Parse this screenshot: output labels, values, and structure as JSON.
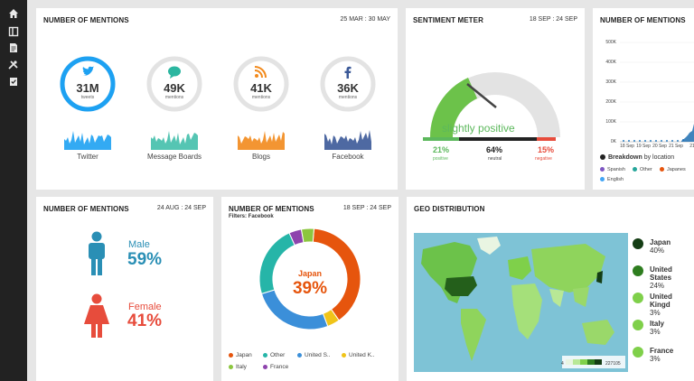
{
  "sidebar": {
    "icons": [
      "home-icon",
      "layout-icon",
      "document-icon",
      "tools-icon",
      "clipboard-check-icon"
    ]
  },
  "mentions_card": {
    "title": "NUMBER OF MENTIONS",
    "date": "25 MAR : 30 MAY",
    "sources": [
      {
        "value": "31M",
        "sub": "tweets",
        "label": "Twitter",
        "color": "#1da1f2",
        "icon": "twitter-icon",
        "ring": 0.85
      },
      {
        "value": "49K",
        "sub": "mentions",
        "label": "Message Boards",
        "color": "#2bb6a0",
        "icon": "chat-bubble-icon",
        "ring": 0
      },
      {
        "value": "41K",
        "sub": "mentions",
        "label": "Blogs",
        "color": "#f28a1c",
        "icon": "rss-icon",
        "ring": 0
      },
      {
        "value": "36K",
        "sub": "mentions",
        "label": "Facebook",
        "color": "#3b5998",
        "icon": "facebook-icon",
        "ring": 0
      }
    ]
  },
  "sentiment": {
    "title": "SENTIMENT METER",
    "date": "18 SEP : 24 SEP",
    "verdict": "slightly positive",
    "positive": {
      "value": "21%",
      "label": "positive",
      "color": "#5cb85c"
    },
    "neutral": {
      "value": "64%",
      "label": "neutral",
      "color": "#222"
    },
    "negative": {
      "value": "15%",
      "label": "negative",
      "color": "#e74c3c"
    }
  },
  "mentions_line": {
    "title": "NUMBER OF MENTIONS",
    "yticks": [
      "500K",
      "400K",
      "300K",
      "200K",
      "100K",
      "0K"
    ],
    "xticks": [
      "18 Sep",
      "19 Sep",
      "20 Sep",
      "21 Sep",
      "21"
    ],
    "breakdown_bold": "Breakdown",
    "breakdown_rest": "by location",
    "legend": [
      {
        "name": "Spanish",
        "color": "#7e57c2"
      },
      {
        "name": "Other",
        "color": "#26a69a"
      },
      {
        "name": "Japanese",
        "color": "#e6550d"
      },
      {
        "name": "English",
        "color": "#42a5f5"
      }
    ],
    "legend_display": [
      "Spanish",
      "Other",
      "Japanes",
      "English"
    ]
  },
  "gender": {
    "title": "NUMBER OF MENTIONS",
    "date": "24 AUG : 24 SEP",
    "male": {
      "label": "Male",
      "value": "59%",
      "color": "#2a8fb5"
    },
    "female": {
      "label": "Female",
      "value": "41%",
      "color": "#e74c3c"
    }
  },
  "donut": {
    "title": "NUMBER OF MENTIONS",
    "date": "18 SEP : 24 SEP",
    "filters": "Filters: Facebook",
    "center_label": "Japan",
    "center_value": "39%",
    "legend": [
      "Japan",
      "Other",
      "United S..",
      "United K..",
      "Italy",
      "France"
    ]
  },
  "chart_data": {
    "type": "pie",
    "categories": [
      "Japan",
      "Other",
      "United S..",
      "United K..",
      "Italy",
      "France"
    ],
    "values": [
      39,
      23,
      26,
      4,
      4,
      4
    ],
    "colors": [
      "#e6550d",
      "#26b5a8",
      "#3b8fd9",
      "#f0c419",
      "#8cc63f",
      "#8e44ad"
    ]
  },
  "geo": {
    "title": "GEO DISTRIBUTION",
    "legend": [
      {
        "name": "Japan",
        "value": "40%",
        "color": "#143d14"
      },
      {
        "name": "United States",
        "value": "24%",
        "color": "#2e7d1f"
      },
      {
        "name": "United Kingd",
        "value": "3%",
        "color": "#7fd04a"
      },
      {
        "name": "Italy",
        "value": "3%",
        "color": "#7fd04a"
      },
      {
        "name": "France",
        "value": "3%",
        "color": "#7fd04a"
      }
    ],
    "scale_min": "4",
    "scale_max": "227105"
  }
}
